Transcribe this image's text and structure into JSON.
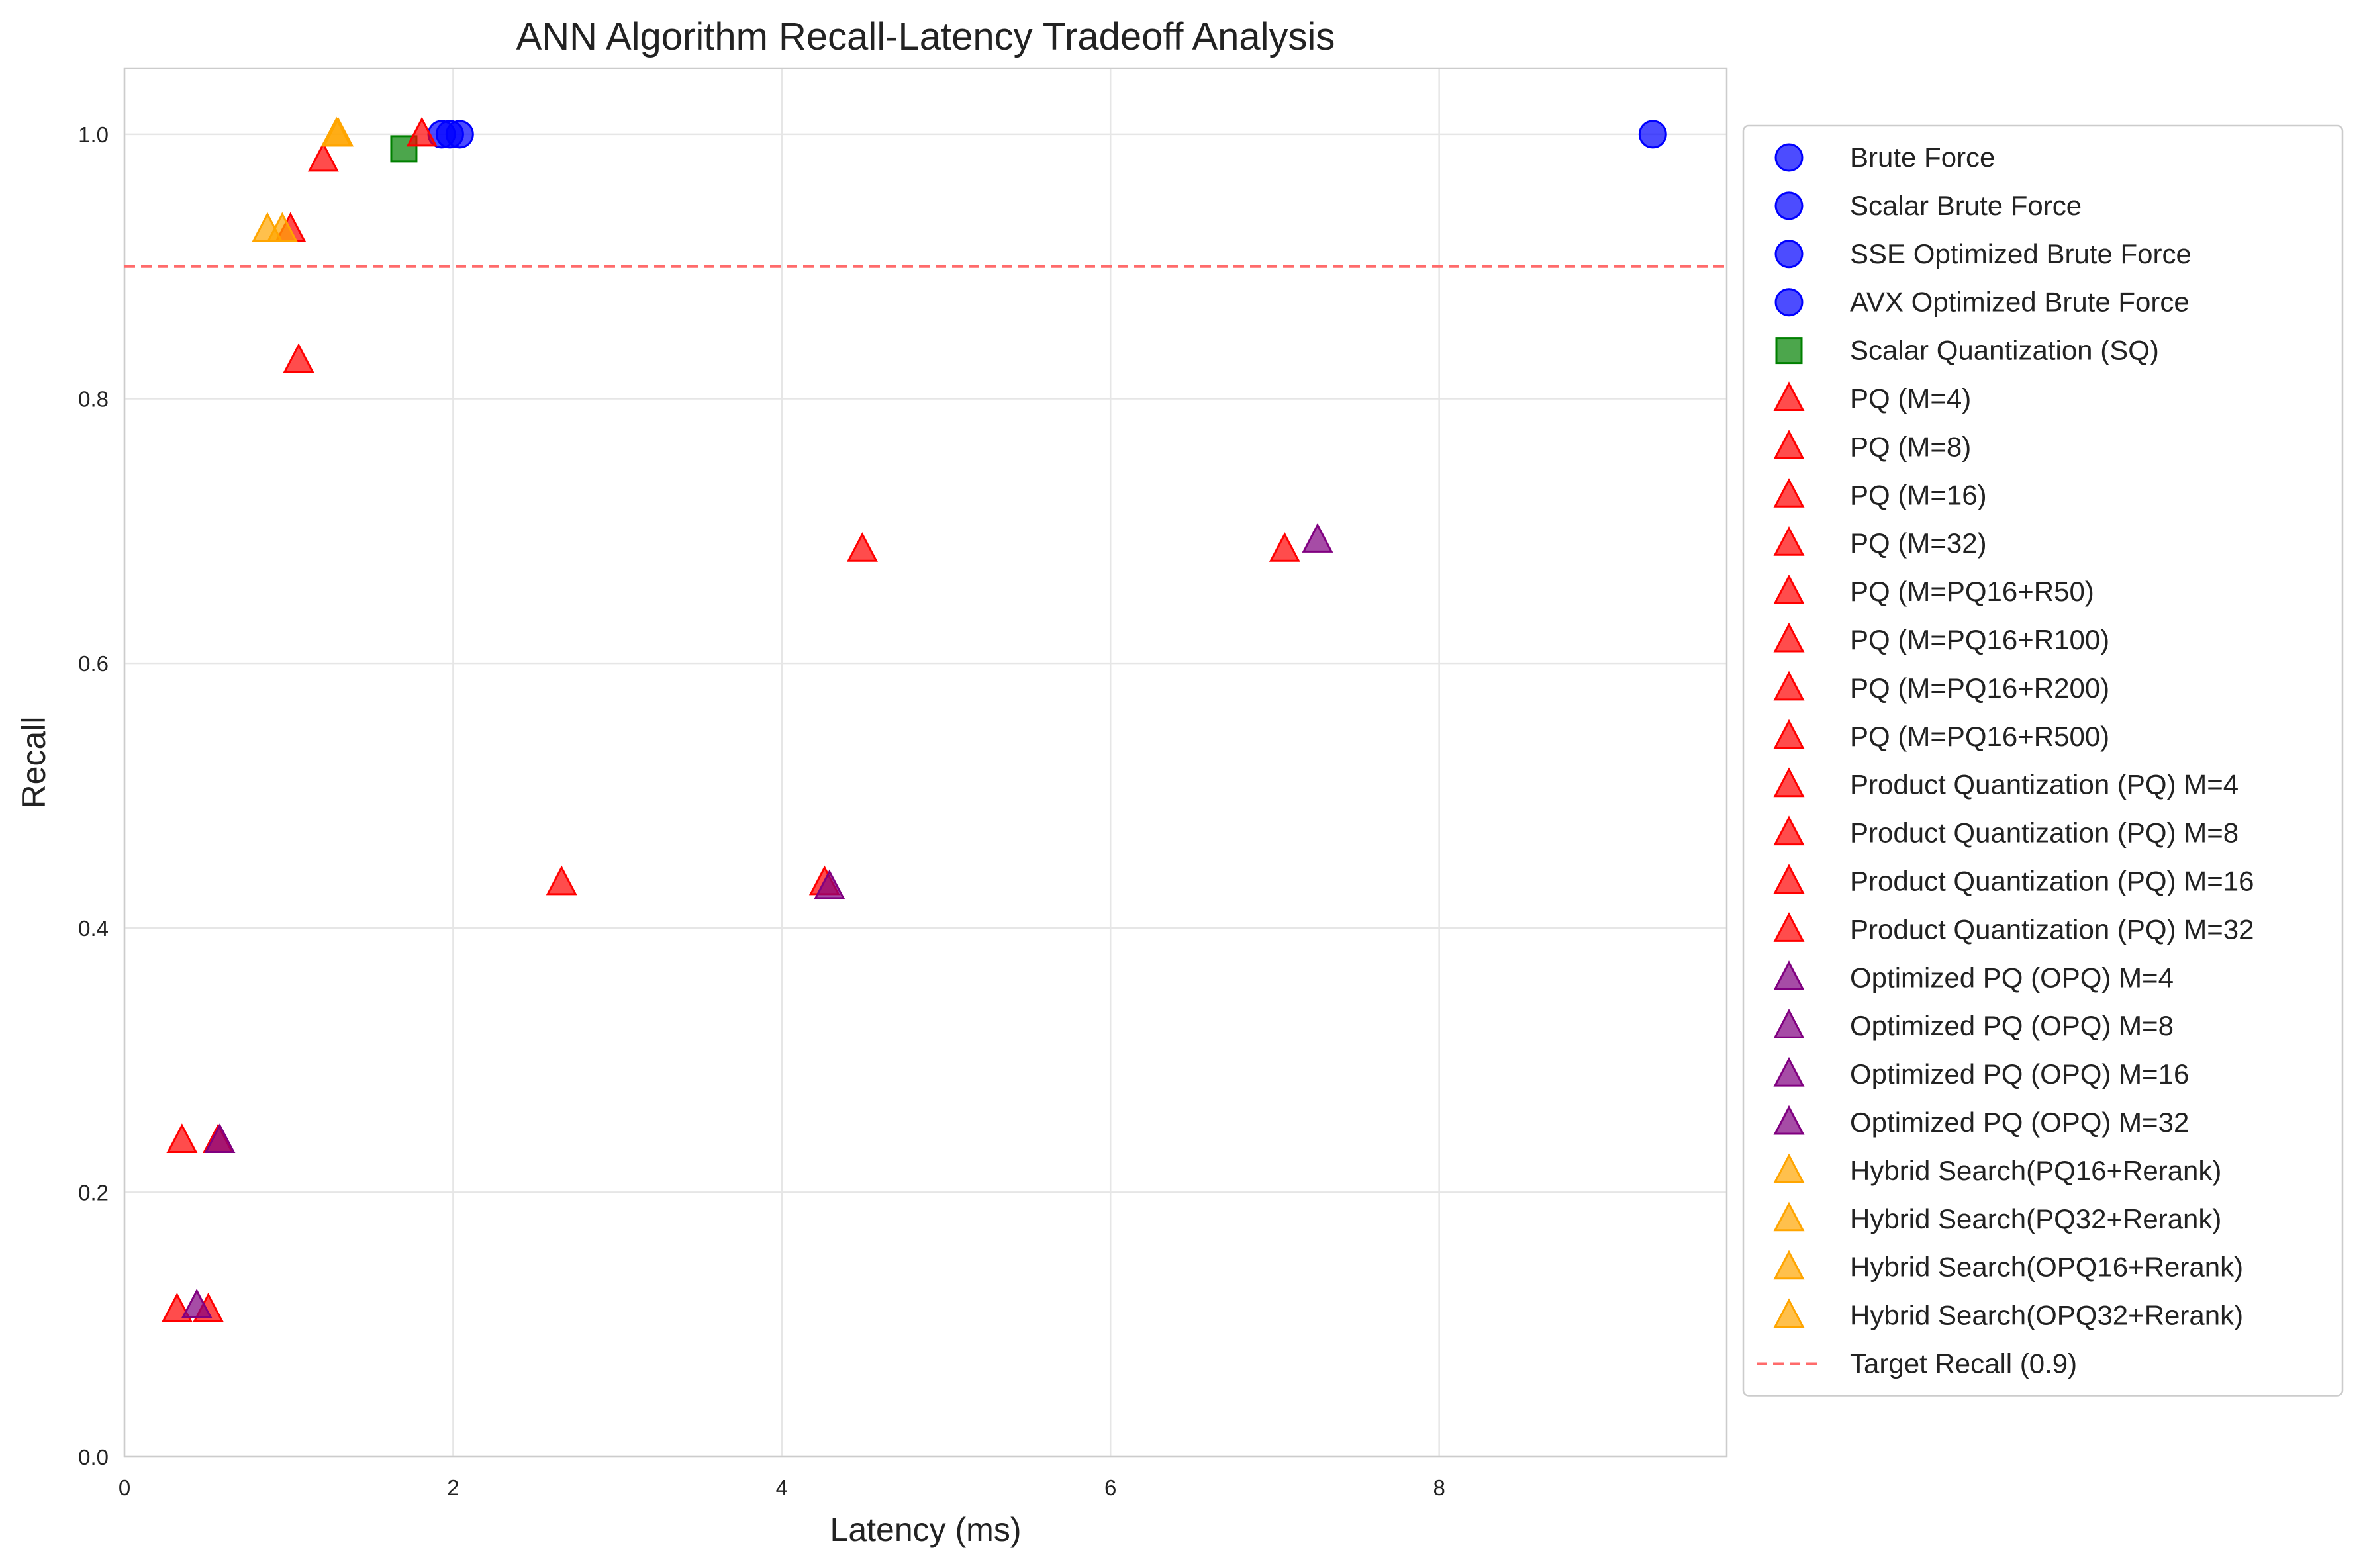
{
  "chart_data": {
    "type": "scatter",
    "title": "ANN Algorithm Recall-Latency Tradeoff Analysis",
    "xlabel": "Latency (ms)",
    "ylabel": "Recall",
    "xlim": [
      0,
      9.75
    ],
    "ylim": [
      0,
      1.05
    ],
    "xticks": [
      0,
      2,
      4,
      6,
      8
    ],
    "yticks": [
      0.0,
      0.2,
      0.4,
      0.6,
      0.8,
      1.0
    ],
    "xtick_labels": [
      "0",
      "2",
      "4",
      "6",
      "8"
    ],
    "ytick_labels": [
      "0.0",
      "0.2",
      "0.4",
      "0.6",
      "0.8",
      "1.0"
    ],
    "grid": true,
    "legend_position": "right, outside plot",
    "reference_line": {
      "name": "Target Recall (0.9)",
      "y": 0.9,
      "color": "#ff6b6b",
      "style": "dashed"
    },
    "series": [
      {
        "name": "Brute Force",
        "marker": "circle",
        "color": "#0000ff",
        "points": [
          [
            9.3,
            1.0
          ]
        ]
      },
      {
        "name": "Scalar Brute Force",
        "marker": "circle",
        "color": "#0000ff",
        "points": [
          [
            1.93,
            1.0
          ]
        ]
      },
      {
        "name": "SSE Optimized Brute Force",
        "marker": "circle",
        "color": "#0000ff",
        "points": [
          [
            1.98,
            1.0
          ]
        ]
      },
      {
        "name": "AVX Optimized Brute Force",
        "marker": "circle",
        "color": "#0000ff",
        "points": [
          [
            2.04,
            1.0
          ]
        ]
      },
      {
        "name": "Scalar Quantization (SQ)",
        "marker": "square",
        "color": "#008000",
        "points": [
          [
            1.7,
            0.989
          ]
        ]
      },
      {
        "name": "PQ (M=4)",
        "marker": "triangle",
        "color": "#ff0000",
        "points": [
          [
            0.32,
            0.111
          ]
        ]
      },
      {
        "name": "PQ (M=8)",
        "marker": "triangle",
        "color": "#ff0000",
        "points": [
          [
            0.35,
            0.239
          ]
        ]
      },
      {
        "name": "PQ (M=16)",
        "marker": "triangle",
        "color": "#ff0000",
        "points": [
          [
            2.66,
            0.434
          ]
        ]
      },
      {
        "name": "PQ (M=32)",
        "marker": "triangle",
        "color": "#ff0000",
        "points": [
          [
            4.49,
            0.686
          ]
        ]
      },
      {
        "name": "PQ (M=PQ16+R50)",
        "marker": "triangle",
        "color": "#ff0000",
        "points": [
          [
            1.06,
            0.829
          ]
        ]
      },
      {
        "name": "PQ (M=PQ16+R100)",
        "marker": "triangle",
        "color": "#ff0000",
        "points": [
          [
            1.01,
            0.928
          ]
        ]
      },
      {
        "name": "PQ (M=PQ16+R200)",
        "marker": "triangle",
        "color": "#ff0000",
        "points": [
          [
            1.21,
            0.981
          ]
        ]
      },
      {
        "name": "PQ (M=PQ16+R500)",
        "marker": "triangle",
        "color": "#ff0000",
        "points": [
          [
            1.81,
            1.0
          ]
        ]
      },
      {
        "name": "Product Quantization (PQ) M=4",
        "marker": "triangle",
        "color": "#ff0000",
        "points": [
          [
            0.51,
            0.111
          ]
        ]
      },
      {
        "name": "Product Quantization (PQ) M=8",
        "marker": "triangle",
        "color": "#ff0000",
        "points": [
          [
            0.57,
            0.239
          ]
        ]
      },
      {
        "name": "Product Quantization (PQ) M=16",
        "marker": "triangle",
        "color": "#ff0000",
        "points": [
          [
            4.26,
            0.434
          ]
        ]
      },
      {
        "name": "Product Quantization (PQ) M=32",
        "marker": "triangle",
        "color": "#ff0000",
        "points": [
          [
            7.06,
            0.686
          ]
        ]
      },
      {
        "name": "Optimized PQ (OPQ) M=4",
        "marker": "triangle",
        "color": "#800080",
        "points": [
          [
            0.44,
            0.114
          ]
        ]
      },
      {
        "name": "Optimized PQ (OPQ) M=8",
        "marker": "triangle",
        "color": "#800080",
        "points": [
          [
            0.58,
            0.239
          ]
        ]
      },
      {
        "name": "Optimized PQ (OPQ) M=16",
        "marker": "triangle",
        "color": "#800080",
        "points": [
          [
            4.29,
            0.431
          ]
        ]
      },
      {
        "name": "Optimized PQ (OPQ) M=32",
        "marker": "triangle",
        "color": "#800080",
        "points": [
          [
            7.26,
            0.693
          ]
        ]
      },
      {
        "name": "Hybrid Search(PQ16+Rerank)",
        "marker": "triangle",
        "color": "#ffa500",
        "points": [
          [
            0.87,
            0.928
          ]
        ]
      },
      {
        "name": "Hybrid Search(PQ32+Rerank)",
        "marker": "triangle",
        "color": "#ffa500",
        "points": [
          [
            1.3,
            1.0
          ]
        ]
      },
      {
        "name": "Hybrid Search(OPQ16+Rerank)",
        "marker": "triangle",
        "color": "#ffa500",
        "points": [
          [
            0.96,
            0.928
          ]
        ]
      },
      {
        "name": "Hybrid Search(OPQ32+Rerank)",
        "marker": "triangle",
        "color": "#ffa500",
        "points": [
          [
            1.29,
            1.0
          ]
        ]
      }
    ]
  }
}
